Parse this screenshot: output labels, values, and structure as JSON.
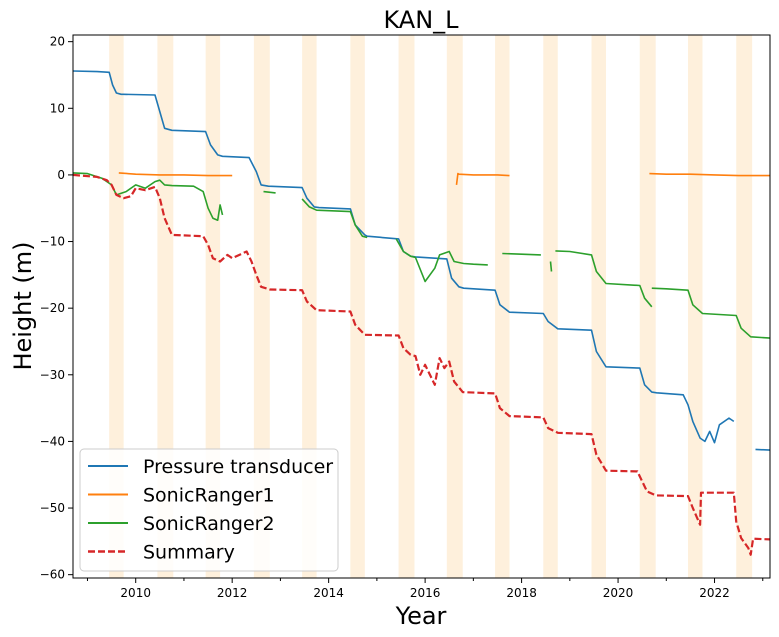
{
  "chart_data": {
    "type": "line",
    "title": "KAN_L",
    "xlabel": "Year",
    "ylabel": "Height (m)",
    "xlim": [
      2008.7,
      2023.15
    ],
    "ylim": [
      -60.5,
      21
    ],
    "xticks": [
      2010,
      2012,
      2014,
      2016,
      2018,
      2020,
      2022
    ],
    "yticks": [
      20,
      10,
      0,
      -10,
      -20,
      -30,
      -40,
      -50,
      -60
    ],
    "ytick_labels": [
      "20",
      "10",
      "0",
      "−10",
      "−20",
      "−30",
      "−40",
      "−50",
      "−60"
    ],
    "grid": false,
    "legend_position": "lower-left",
    "summer_bands": [
      [
        2009.45,
        2009.75
      ],
      [
        2010.45,
        2010.78
      ],
      [
        2011.45,
        2011.75
      ],
      [
        2012.45,
        2012.78
      ],
      [
        2013.45,
        2013.75
      ],
      [
        2014.45,
        2014.75
      ],
      [
        2015.45,
        2015.78
      ],
      [
        2016.45,
        2016.78
      ],
      [
        2017.45,
        2017.75
      ],
      [
        2018.45,
        2018.75
      ],
      [
        2019.45,
        2019.75
      ],
      [
        2020.45,
        2020.78
      ],
      [
        2021.45,
        2021.75
      ],
      [
        2022.45,
        2022.78
      ]
    ],
    "series": [
      {
        "name": "Pressure transducer",
        "color": "#1f77b4",
        "dash": false,
        "segments": [
          {
            "x": [
              2008.7,
              2009.2,
              2009.45,
              2009.52,
              2009.6,
              2009.7,
              2009.75,
              2010.4,
              2010.5,
              2010.6,
              2010.75,
              2011.45,
              2011.55,
              2011.7,
              2011.8,
              2012.35,
              2012.5,
              2012.6,
              2012.75,
              2013.45,
              2013.55,
              2013.7,
              2013.8,
              2014.45,
              2014.55,
              2014.75,
              2014.8,
              2015.45,
              2015.55,
              2015.7,
              2015.8,
              2016.45,
              2016.55,
              2016.7,
              2016.8,
              2017.45,
              2017.55,
              2017.75,
              2018.45,
              2018.55,
              2018.75,
              2019.45,
              2019.55,
              2019.75,
              2020.45,
              2020.55,
              2020.7,
              2020.8,
              2021.35,
              2021.45,
              2021.55,
              2021.7,
              2021.8,
              2021.9,
              2022.0,
              2022.1,
              2022.3,
              2022.4
            ],
            "y": [
              15.6,
              15.5,
              15.4,
              13.5,
              12.3,
              12.1,
              12.1,
              12.0,
              9.5,
              7.0,
              6.7,
              6.5,
              4.5,
              3.0,
              2.8,
              2.6,
              0.5,
              -1.5,
              -1.7,
              -1.9,
              -3.5,
              -4.8,
              -4.9,
              -5.1,
              -7.5,
              -9.0,
              -9.2,
              -9.6,
              -11.5,
              -12.2,
              -12.3,
              -12.6,
              -15.5,
              -16.8,
              -17.0,
              -17.3,
              -19.5,
              -20.6,
              -20.8,
              -22.0,
              -23.1,
              -23.3,
              -26.5,
              -28.8,
              -29.0,
              -31.5,
              -32.6,
              -32.7,
              -33.0,
              -34.5,
              -37.0,
              -39.5,
              -40.0,
              -38.5,
              -40.2,
              -37.5,
              -36.5,
              -37.0
            ]
          },
          {
            "x": [
              2022.85,
              2023.15
            ],
            "y": [
              -41.2,
              -41.3
            ]
          }
        ]
      },
      {
        "name": "SonicRanger1",
        "color": "#ff7f0e",
        "dash": false,
        "segments": [
          {
            "x": [
              2009.65,
              2010.0,
              2010.5,
              2011.0,
              2011.5,
              2012.0
            ],
            "y": [
              0.3,
              0.1,
              0.0,
              0.0,
              -0.1,
              -0.1
            ]
          },
          {
            "x": [
              2016.65,
              2016.68,
              2016.7,
              2017.0,
              2017.5,
              2017.75
            ],
            "y": [
              -1.5,
              0.2,
              0.1,
              0.0,
              0.0,
              -0.1
            ]
          },
          {
            "x": [
              2020.65,
              2021.0,
              2021.5,
              2022.0,
              2022.5,
              2023.15
            ],
            "y": [
              0.2,
              0.1,
              0.1,
              0.0,
              -0.1,
              -0.1
            ]
          }
        ]
      },
      {
        "name": "SonicRanger2",
        "color": "#2ca02c",
        "dash": false,
        "segments": [
          {
            "x": [
              2008.7,
              2009.0,
              2009.3,
              2009.5,
              2009.6,
              2009.8,
              2010.0,
              2010.2,
              2010.4,
              2010.5,
              2010.6,
              2010.75,
              2011.2,
              2011.4,
              2011.5,
              2011.6,
              2011.7,
              2011.75,
              2011.8
            ],
            "y": [
              0.3,
              0.2,
              -0.5,
              -1.5,
              -3.0,
              -2.5,
              -1.5,
              -2.0,
              -1.0,
              -0.8,
              -1.5,
              -1.6,
              -1.7,
              -2.5,
              -5.0,
              -6.5,
              -6.8,
              -4.5,
              -6.0
            ]
          },
          {
            "x": [
              2012.65,
              2012.9
            ],
            "y": [
              -2.5,
              -2.7
            ]
          },
          {
            "x": [
              2013.45,
              2013.6,
              2013.75,
              2014.45,
              2014.55,
              2014.7,
              2014.8
            ],
            "y": [
              -3.6,
              -4.8,
              -5.3,
              -5.5,
              -7.5,
              -9.2,
              -9.4
            ]
          },
          {
            "x": [
              2015.4,
              2015.55,
              2015.7,
              2015.8,
              2016.0,
              2016.2,
              2016.3,
              2016.5,
              2016.6,
              2016.8,
              2017.0,
              2017.3
            ],
            "y": [
              -9.6,
              -11.5,
              -12.2,
              -12.4,
              -16.0,
              -14.0,
              -12.0,
              -11.5,
              -13.0,
              -13.3,
              -13.4,
              -13.5
            ]
          },
          {
            "x": [
              2017.6,
              2018.0,
              2018.4
            ],
            "y": [
              -11.8,
              -11.9,
              -12.0
            ]
          },
          {
            "x": [
              2018.6,
              2018.62
            ],
            "y": [
              -13.0,
              -14.5
            ]
          },
          {
            "x": [
              2018.7,
              2019.0,
              2019.45,
              2019.55,
              2019.75,
              2020.45,
              2020.55,
              2020.7
            ],
            "y": [
              -11.4,
              -11.5,
              -12.0,
              -14.5,
              -16.3,
              -16.6,
              -18.5,
              -19.8
            ]
          },
          {
            "x": [
              2020.7,
              2021.0,
              2021.45,
              2021.55,
              2021.75,
              2022.45,
              2022.55,
              2022.75,
              2023.15
            ],
            "y": [
              -17.0,
              -17.1,
              -17.3,
              -19.5,
              -20.8,
              -21.1,
              -23.0,
              -24.3,
              -24.5
            ]
          }
        ]
      },
      {
        "name": "Summary",
        "color": "#d62728",
        "dash": true,
        "segments": [
          {
            "x": [
              2008.7,
              2009.2,
              2009.4,
              2009.5,
              2009.6,
              2009.75,
              2009.9,
              2010.0,
              2010.2,
              2010.4,
              2010.5,
              2010.6,
              2010.75,
              2011.4,
              2011.5,
              2011.6,
              2011.75,
              2011.9,
              2012.0,
              2012.3,
              2012.4,
              2012.5,
              2012.6,
              2012.78,
              2013.45,
              2013.55,
              2013.75,
              2014.45,
              2014.55,
              2014.75,
              2015.45,
              2015.55,
              2015.7,
              2015.8,
              2015.9,
              2016.0,
              2016.2,
              2016.3,
              2016.4,
              2016.5,
              2016.6,
              2016.78,
              2017.45,
              2017.55,
              2017.75,
              2018.45,
              2018.55,
              2018.75,
              2019.45,
              2019.55,
              2019.75,
              2020.4,
              2020.5,
              2020.6,
              2020.78,
              2021.45,
              2021.55,
              2021.7,
              2021.72,
              2021.75,
              2022.4,
              2022.45,
              2022.55,
              2022.7,
              2022.75,
              2022.8,
              2023.15
            ],
            "y": [
              0.0,
              -0.3,
              -0.8,
              -1.5,
              -3.0,
              -3.5,
              -3.2,
              -2.0,
              -2.3,
              -1.8,
              -3.5,
              -6.5,
              -9.0,
              -9.2,
              -10.5,
              -12.5,
              -13.0,
              -12.0,
              -12.5,
              -11.5,
              -13.0,
              -15.0,
              -16.8,
              -17.2,
              -17.3,
              -19.0,
              -20.3,
              -20.5,
              -22.5,
              -24.0,
              -24.1,
              -26.0,
              -27.0,
              -27.2,
              -30.0,
              -28.5,
              -31.5,
              -27.5,
              -29.0,
              -28.0,
              -31.0,
              -32.6,
              -32.8,
              -35.0,
              -36.2,
              -36.4,
              -38.0,
              -38.7,
              -38.9,
              -42.0,
              -44.4,
              -44.5,
              -46.0,
              -47.5,
              -48.1,
              -48.2,
              -50.0,
              -52.5,
              -47.7,
              -47.7,
              -47.7,
              -52.0,
              -54.5,
              -56.0,
              -57.0,
              -54.6,
              -54.7
            ]
          }
        ]
      }
    ]
  }
}
